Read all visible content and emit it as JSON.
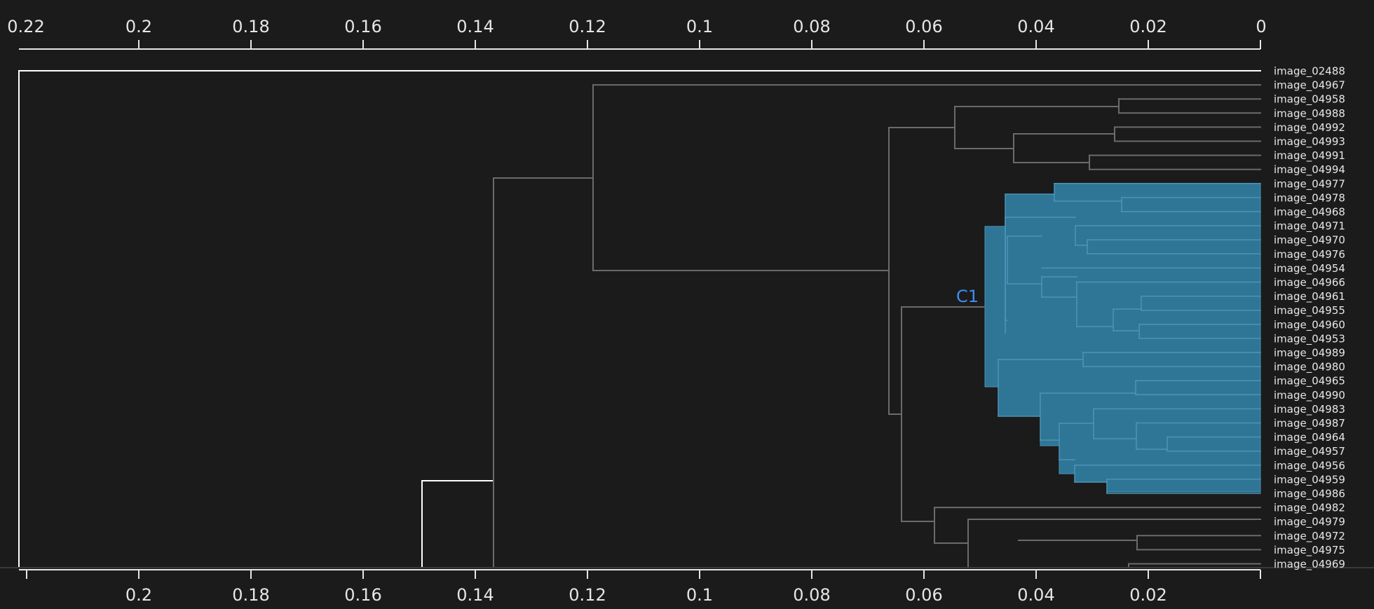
{
  "colors": {
    "background": "#1b1b1b",
    "axis": "#e6e6e6",
    "link_default": "#6b6b6b",
    "link_highlight": "#ffffff",
    "cluster_fill": "#2f7596",
    "cluster_stroke": "#4a95b8",
    "cluster_label": "#3d8ef0"
  },
  "axis": {
    "top_ticks": [
      "0.22",
      "0.2",
      "0.18",
      "0.16",
      "0.14",
      "0.12",
      "0.1",
      "0.08",
      "0.06",
      "0.04",
      "0.02",
      "0"
    ],
    "bottom_ticks": [
      "0.2",
      "0.18",
      "0.16",
      "0.14",
      "0.12",
      "0.1",
      "0.08",
      "0.06",
      "0.04",
      "0.02"
    ]
  },
  "leaves": [
    "image_02488",
    "image_04967",
    "image_04958",
    "image_04988",
    "image_04992",
    "image_04993",
    "image_04991",
    "image_04994",
    "image_04977",
    "image_04978",
    "image_04968",
    "image_04971",
    "image_04970",
    "image_04976",
    "image_04954",
    "image_04966",
    "image_04961",
    "image_04955",
    "image_04960",
    "image_04953",
    "image_04989",
    "image_04980",
    "image_04965",
    "image_04990",
    "image_04983",
    "image_04987",
    "image_04964",
    "image_04957",
    "image_04956",
    "image_04959",
    "image_04986",
    "image_04982",
    "image_04979",
    "image_04972",
    "image_04975",
    "image_04969"
  ],
  "cluster": {
    "label": "C1"
  }
}
